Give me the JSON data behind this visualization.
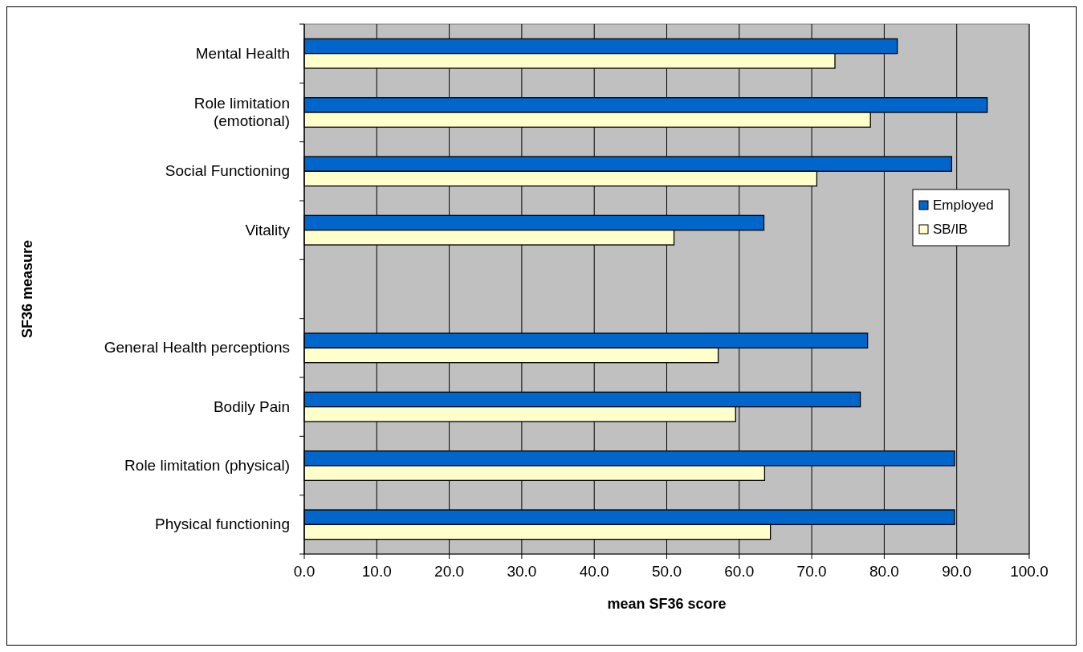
{
  "chart_data": {
    "type": "bar",
    "orientation": "horizontal",
    "categories": [
      "Mental Health",
      "Role limitation (emotional)",
      "Social Functioning",
      "Vitality",
      null,
      "General Health perceptions",
      "Bodily Pain",
      "Role limitation (physical)",
      "Physical functioning"
    ],
    "series": [
      {
        "name": "Employed",
        "color": "#0066cc",
        "values": [
          81.8,
          94.2,
          89.3,
          63.4,
          null,
          77.7,
          76.7,
          89.7,
          89.7
        ]
      },
      {
        "name": "SB/IB",
        "color": "#ffffcc",
        "values": [
          73.2,
          78.1,
          70.7,
          51.0,
          null,
          57.1,
          59.5,
          63.5,
          64.3
        ]
      }
    ],
    "xlim": [
      0,
      100
    ],
    "xticks": [
      {
        "value": 0,
        "label": "0.0"
      },
      {
        "value": 10,
        "label": "10.0"
      },
      {
        "value": 20,
        "label": "20.0"
      },
      {
        "value": 30,
        "label": "30.0"
      },
      {
        "value": 40,
        "label": "40.0"
      },
      {
        "value": 50,
        "label": "50.0"
      },
      {
        "value": 60,
        "label": "60.0"
      },
      {
        "value": 70,
        "label": "70.0"
      },
      {
        "value": 80,
        "label": "80.0"
      },
      {
        "value": 90,
        "label": "90.0"
      },
      {
        "value": 100,
        "label": "100.0"
      }
    ],
    "xlabel": "mean SF36 score",
    "ylabel": "SF36 measure",
    "grid": "x",
    "legend": "right"
  }
}
